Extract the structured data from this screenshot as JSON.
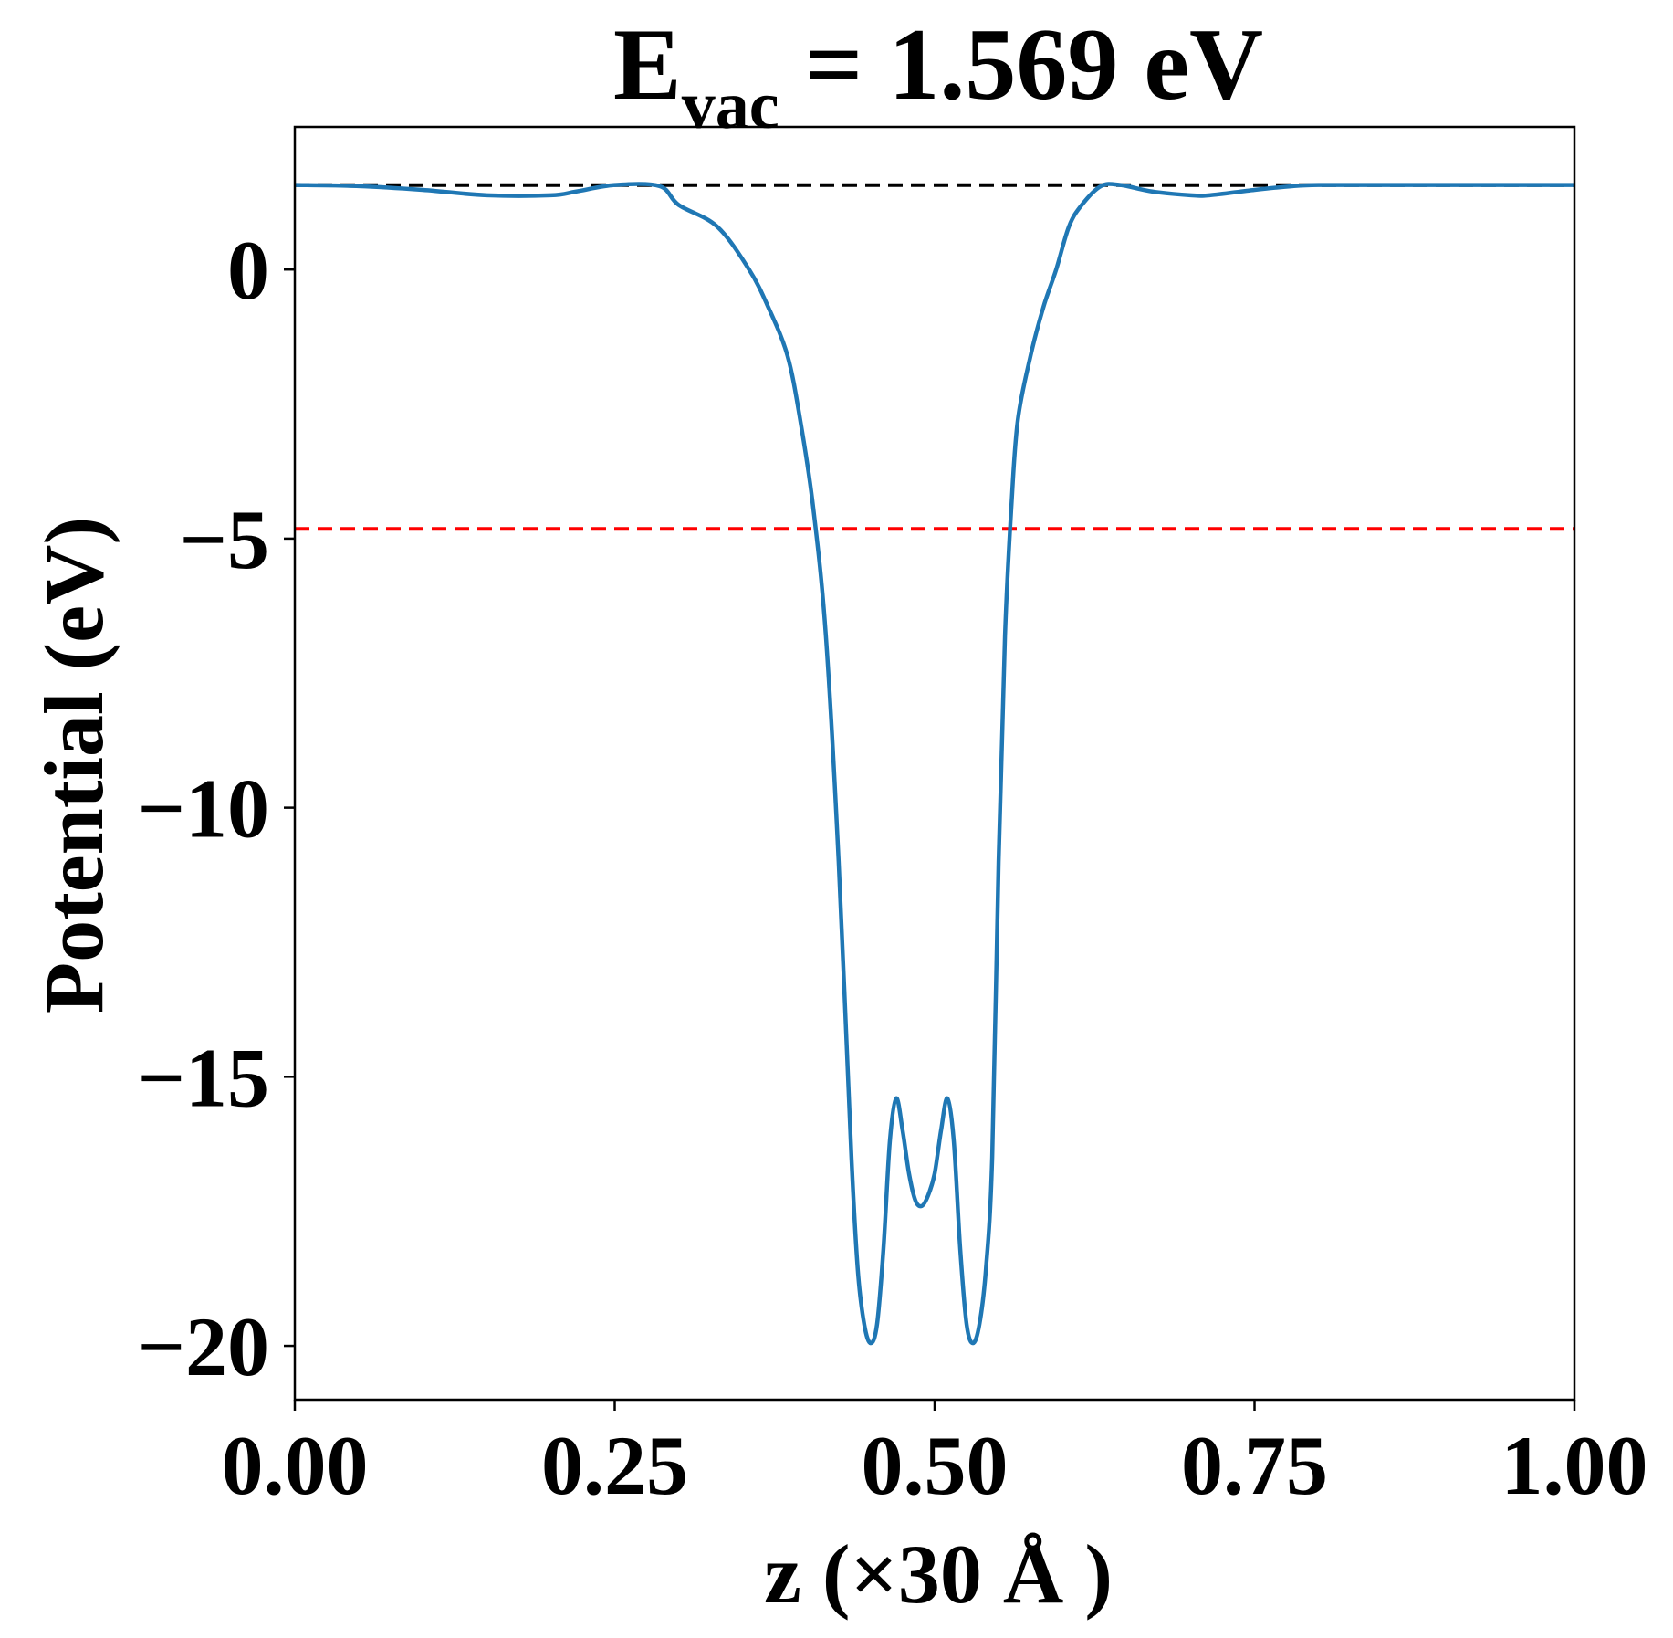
{
  "chart_data": {
    "type": "line",
    "title": {
      "main": "E",
      "sub": "vac",
      "rest": " = 1.569 eV"
    },
    "xlabel": "z (×30 Å )",
    "ylabel": "Potential (eV)",
    "xlim": [
      0.0,
      1.0
    ],
    "ylim": [
      -21.0,
      2.65
    ],
    "xticks": [
      0.0,
      0.25,
      0.5,
      0.75,
      1.0
    ],
    "xtick_labels": [
      "0.00",
      "0.25",
      "0.50",
      "0.75",
      "1.00"
    ],
    "yticks": [
      0,
      -5,
      -10,
      -15,
      -20
    ],
    "ytick_labels": [
      "0",
      "−5",
      "−10",
      "−15",
      "−20"
    ],
    "grid": false,
    "series": [
      {
        "color": "#1f77b4",
        "x": [
          0.0,
          0.05,
          0.1,
          0.15,
          0.2,
          0.22,
          0.25,
          0.285,
          0.3,
          0.33,
          0.355,
          0.37,
          0.385,
          0.395,
          0.405,
          0.415,
          0.425,
          0.435,
          0.44,
          0.445,
          0.45,
          0.455,
          0.46,
          0.465,
          0.47,
          0.475,
          0.48,
          0.485,
          0.49,
          0.495,
          0.5,
          0.505,
          0.51,
          0.515,
          0.52,
          0.525,
          0.53,
          0.535,
          0.54,
          0.545,
          0.55,
          0.555,
          0.56,
          0.565,
          0.575,
          0.585,
          0.595,
          0.605,
          0.615,
          0.63,
          0.645,
          0.67,
          0.7,
          0.715,
          0.75,
          0.78,
          0.8,
          0.85,
          0.9,
          0.95,
          1.0
        ],
        "y": [
          1.57,
          1.55,
          1.48,
          1.38,
          1.38,
          1.45,
          1.57,
          1.55,
          1.2,
          0.8,
          0.0,
          -0.7,
          -1.6,
          -2.8,
          -4.4,
          -6.8,
          -11.0,
          -16.5,
          -18.6,
          -19.6,
          -19.95,
          -19.6,
          -18.2,
          -16.2,
          -15.4,
          -16.0,
          -16.8,
          -17.3,
          -17.4,
          -17.2,
          -16.8,
          -16.0,
          -15.4,
          -16.2,
          -18.2,
          -19.6,
          -19.95,
          -19.6,
          -18.6,
          -16.5,
          -11.0,
          -6.8,
          -4.4,
          -2.8,
          -1.6,
          -0.7,
          0.0,
          0.8,
          1.2,
          1.55,
          1.57,
          1.45,
          1.38,
          1.38,
          1.48,
          1.55,
          1.57,
          1.57,
          1.57,
          1.57,
          1.57
        ]
      }
    ],
    "reference_lines": [
      {
        "y": 1.569,
        "color": "#000000",
        "style": "dashed"
      },
      {
        "y": -4.82,
        "color": "#ff0000",
        "style": "dashed"
      }
    ]
  }
}
